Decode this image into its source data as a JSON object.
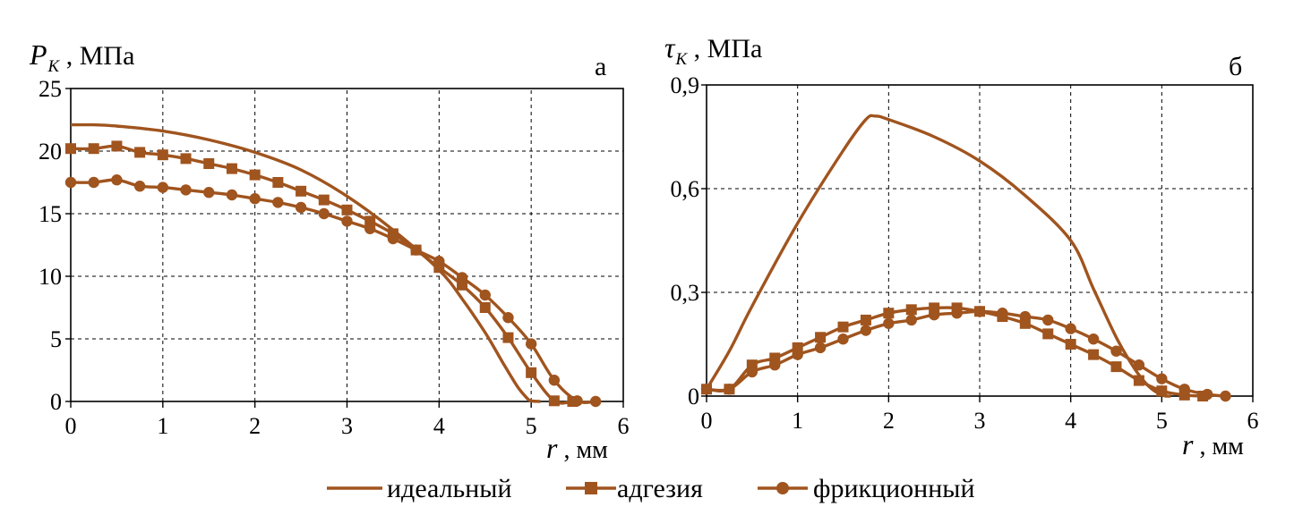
{
  "chart_data": [
    {
      "type": "line",
      "panel_label": "а",
      "ylabel": "P",
      "ylabel_sub": "K",
      "ylabel_unit": ", МПа",
      "xlabel": "r",
      "xlabel_unit": ", мм",
      "xlim": [
        0,
        6
      ],
      "ylim": [
        0,
        25
      ],
      "xticks": [
        0,
        1,
        2,
        3,
        4,
        5,
        6
      ],
      "yticks": [
        0,
        5,
        10,
        15,
        20,
        25
      ],
      "grid": true,
      "series": [
        {
          "name": "идеальный",
          "marker": "none",
          "x": [
            0,
            0.25,
            0.5,
            1.0,
            1.5,
            2.0,
            2.5,
            3.0,
            3.5,
            4.0,
            4.25,
            4.5,
            4.7,
            4.85,
            4.95,
            5.0,
            5.1
          ],
          "y": [
            22.1,
            22.1,
            22.0,
            21.6,
            20.9,
            19.9,
            18.5,
            16.4,
            13.7,
            10.5,
            8.2,
            5.5,
            3.0,
            1.2,
            0.3,
            0.05,
            0
          ]
        },
        {
          "name": "адгезия",
          "marker": "square",
          "x": [
            0,
            0.25,
            0.5,
            0.75,
            1.0,
            1.25,
            1.5,
            1.75,
            2.0,
            2.25,
            2.5,
            2.75,
            3.0,
            3.25,
            3.5,
            3.75,
            4.0,
            4.25,
            4.5,
            4.75,
            5.0,
            5.25,
            5.45
          ],
          "y": [
            20.2,
            20.2,
            20.4,
            19.9,
            19.7,
            19.4,
            19.0,
            18.6,
            18.1,
            17.5,
            16.8,
            16.1,
            15.3,
            14.4,
            13.4,
            12.1,
            10.7,
            9.3,
            7.5,
            5.1,
            2.3,
            0.05,
            0
          ]
        },
        {
          "name": "фрикционный",
          "marker": "circle",
          "x": [
            0,
            0.25,
            0.5,
            0.75,
            1.0,
            1.25,
            1.5,
            1.75,
            2.0,
            2.25,
            2.5,
            2.75,
            3.0,
            3.25,
            3.5,
            3.75,
            4.0,
            4.25,
            4.5,
            4.75,
            5.0,
            5.25,
            5.5,
            5.7
          ],
          "y": [
            17.5,
            17.5,
            17.7,
            17.2,
            17.1,
            16.9,
            16.7,
            16.5,
            16.2,
            15.9,
            15.5,
            15.0,
            14.4,
            13.8,
            13.0,
            12.1,
            11.2,
            9.9,
            8.5,
            6.7,
            4.6,
            1.7,
            0.05,
            0
          ]
        }
      ]
    },
    {
      "type": "line",
      "panel_label": "б",
      "ylabel": "τ",
      "ylabel_sub": "K",
      "ylabel_unit": ", МПа",
      "xlabel": "r",
      "xlabel_unit": ", мм",
      "xlim": [
        0,
        6
      ],
      "ylim": [
        0,
        0.9
      ],
      "xticks": [
        0,
        1,
        2,
        3,
        4,
        5,
        6
      ],
      "xtick_labels": [
        "0",
        "1",
        "2",
        "3",
        "4",
        "5",
        "6"
      ],
      "yticks": [
        0,
        0.3,
        0.6,
        0.9
      ],
      "ytick_labels": [
        "0",
        "0,3",
        "0,6",
        "0,9"
      ],
      "grid": true,
      "series": [
        {
          "name": "идеальный",
          "marker": "none",
          "x": [
            0,
            0.25,
            0.5,
            1.0,
            1.5,
            1.75,
            1.85,
            2.0,
            2.5,
            3.0,
            3.5,
            4.0,
            4.25,
            4.5,
            4.7,
            4.85,
            5.0,
            5.1
          ],
          "y": [
            0.02,
            0.13,
            0.26,
            0.5,
            0.71,
            0.8,
            0.81,
            0.8,
            0.75,
            0.68,
            0.58,
            0.45,
            0.31,
            0.17,
            0.08,
            0.03,
            0.003,
            0
          ]
        },
        {
          "name": "адгезия",
          "marker": "square",
          "x": [
            0,
            0.25,
            0.5,
            0.75,
            1.0,
            1.25,
            1.5,
            1.75,
            2.0,
            2.25,
            2.5,
            2.75,
            3.0,
            3.25,
            3.5,
            3.75,
            4.0,
            4.25,
            4.5,
            4.75,
            5.0,
            5.25,
            5.45
          ],
          "y": [
            0.02,
            0.02,
            0.09,
            0.11,
            0.14,
            0.17,
            0.2,
            0.22,
            0.24,
            0.25,
            0.255,
            0.255,
            0.245,
            0.23,
            0.21,
            0.18,
            0.15,
            0.12,
            0.085,
            0.045,
            0.015,
            0.003,
            0
          ]
        },
        {
          "name": "фрикционный",
          "marker": "circle",
          "x": [
            0,
            0.25,
            0.5,
            0.75,
            1.0,
            1.25,
            1.5,
            1.75,
            2.0,
            2.25,
            2.5,
            2.75,
            3.0,
            3.25,
            3.5,
            3.75,
            4.0,
            4.25,
            4.5,
            4.75,
            5.0,
            5.25,
            5.5,
            5.7
          ],
          "y": [
            0.02,
            0.02,
            0.07,
            0.09,
            0.12,
            0.14,
            0.165,
            0.19,
            0.21,
            0.22,
            0.235,
            0.24,
            0.245,
            0.24,
            0.23,
            0.22,
            0.195,
            0.165,
            0.13,
            0.09,
            0.05,
            0.02,
            0.005,
            0
          ]
        }
      ]
    }
  ],
  "legend": [
    {
      "label": "идеальный",
      "marker": "none"
    },
    {
      "label": "адгезия",
      "marker": "square"
    },
    {
      "label": "фрикционный",
      "marker": "circle"
    }
  ],
  "colors": {
    "series": "#a0541e",
    "axis": "#000000",
    "grid": "#000000",
    "background": "#ffffff"
  }
}
